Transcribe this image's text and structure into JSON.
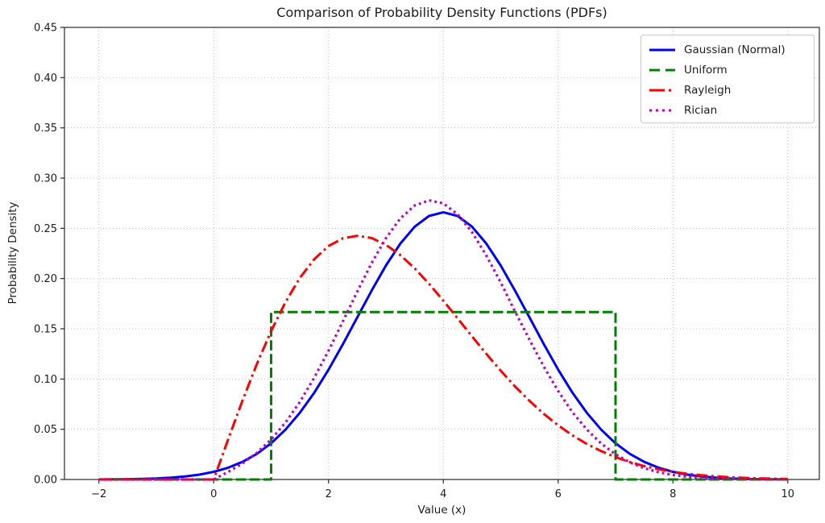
{
  "figure": {
    "background": "#ffffff",
    "text_color": "#1c1c1c",
    "spine_color": "#2a2a2a",
    "grid_color": "#c6c6c6",
    "legend_border_color": "#c9c9c9"
  },
  "chart_data": {
    "type": "line",
    "title": "Comparison of Probability Density Functions (PDFs)",
    "xlabel": "Value (x)",
    "ylabel": "Probability Density",
    "xlim": [
      -2.6,
      10.55
    ],
    "ylim": [
      0,
      0.45
    ],
    "xticks": [
      -2,
      0,
      2,
      4,
      6,
      8,
      10
    ],
    "xtick_labels": [
      "−2",
      "0",
      "2",
      "4",
      "6",
      "8",
      "10"
    ],
    "yticks": [
      0,
      0.05,
      0.1,
      0.15,
      0.2,
      0.25,
      0.3,
      0.35,
      0.4,
      0.45
    ],
    "ytick_labels": [
      "0.00",
      "0.05",
      "0.10",
      "0.15",
      "0.20",
      "0.25",
      "0.30",
      "0.35",
      "0.40",
      "0.45"
    ],
    "grid": "dotted",
    "legend_position": "upper right",
    "series": [
      {
        "name": "gaussian",
        "label": "Gaussian (Normal)",
        "color": "#0000ff",
        "style": "solid",
        "points": [
          [
            -2,
            0.0001
          ],
          [
            -1.75,
            0.0002
          ],
          [
            -1.5,
            0.0003
          ],
          [
            -1.25,
            0.0006
          ],
          [
            -1,
            0.001
          ],
          [
            -0.75,
            0.0018
          ],
          [
            -0.5,
            0.003
          ],
          [
            -0.25,
            0.0048
          ],
          [
            0,
            0.0076
          ],
          [
            0.25,
            0.0117
          ],
          [
            0.5,
            0.0175
          ],
          [
            0.75,
            0.0254
          ],
          [
            1,
            0.036
          ],
          [
            1.25,
            0.0496
          ],
          [
            1.5,
            0.0663
          ],
          [
            1.75,
            0.0863
          ],
          [
            2,
            0.1093
          ],
          [
            2.25,
            0.1347
          ],
          [
            2.5,
            0.1613
          ],
          [
            2.75,
            0.1879
          ],
          [
            3,
            0.213
          ],
          [
            3.25,
            0.2347
          ],
          [
            3.5,
            0.2516
          ],
          [
            3.75,
            0.2623
          ],
          [
            4,
            0.266
          ],
          [
            4.25,
            0.2623
          ],
          [
            4.5,
            0.2516
          ],
          [
            4.75,
            0.2347
          ],
          [
            5,
            0.213
          ],
          [
            5.25,
            0.1879
          ],
          [
            5.5,
            0.1613
          ],
          [
            5.75,
            0.1347
          ],
          [
            6,
            0.1093
          ],
          [
            6.25,
            0.0863
          ],
          [
            6.5,
            0.0663
          ],
          [
            6.75,
            0.0496
          ],
          [
            7,
            0.036
          ],
          [
            7.25,
            0.0254
          ],
          [
            7.5,
            0.0175
          ],
          [
            7.75,
            0.0117
          ],
          [
            8,
            0.0076
          ],
          [
            8.25,
            0.0048
          ],
          [
            8.5,
            0.003
          ],
          [
            8.75,
            0.0018
          ],
          [
            9,
            0.001
          ],
          [
            9.25,
            0.0006
          ],
          [
            9.5,
            0.0003
          ],
          [
            9.75,
            0.0002
          ],
          [
            10,
            0.0001
          ]
        ]
      },
      {
        "name": "uniform",
        "label": "Uniform",
        "color": "#008000",
        "style": "dashed",
        "points": [
          [
            -2,
            0
          ],
          [
            1,
            0
          ],
          [
            1,
            0.1667
          ],
          [
            7,
            0.1667
          ],
          [
            7,
            0
          ],
          [
            10,
            0
          ]
        ]
      },
      {
        "name": "rayleigh",
        "label": "Rayleigh",
        "color": "#ff0000",
        "style": "dashdot",
        "points": [
          [
            -2,
            0
          ],
          [
            0,
            0
          ],
          [
            0.25,
            0.0398
          ],
          [
            0.5,
            0.0784
          ],
          [
            0.75,
            0.1147
          ],
          [
            1,
            0.1477
          ],
          [
            1.25,
            0.1765
          ],
          [
            1.5,
            0.2005
          ],
          [
            1.75,
            0.2192
          ],
          [
            2,
            0.2324
          ],
          [
            2.25,
            0.2401
          ],
          [
            2.5,
            0.2426
          ],
          [
            2.75,
            0.2403
          ],
          [
            3,
            0.2336
          ],
          [
            3.25,
            0.2234
          ],
          [
            3.5,
            0.2102
          ],
          [
            3.75,
            0.1948
          ],
          [
            4,
            0.1779
          ],
          [
            4.25,
            0.1603
          ],
          [
            4.5,
            0.1425
          ],
          [
            4.75,
            0.125
          ],
          [
            5,
            0.1083
          ],
          [
            5.25,
            0.0926
          ],
          [
            5.5,
            0.0783
          ],
          [
            5.75,
            0.0653
          ],
          [
            6,
            0.0539
          ],
          [
            6.25,
            0.0439
          ],
          [
            6.5,
            0.0354
          ],
          [
            6.75,
            0.0282
          ],
          [
            7,
            0.0222
          ],
          [
            7.25,
            0.0173
          ],
          [
            7.5,
            0.0133
          ],
          [
            7.75,
            0.0102
          ],
          [
            8,
            0.0076
          ],
          [
            8.25,
            0.0057
          ],
          [
            8.5,
            0.0042
          ],
          [
            8.75,
            0.0031
          ],
          [
            9,
            0.0022
          ],
          [
            9.25,
            0.0016
          ],
          [
            9.5,
            0.0011
          ],
          [
            9.75,
            0.0008
          ],
          [
            10,
            0.0005
          ]
        ]
      },
      {
        "name": "rician",
        "label": "Rician",
        "color": "#bf00bf",
        "style": "dotted",
        "points": [
          [
            -2,
            0
          ],
          [
            0,
            0
          ],
          [
            0.25,
            0.0075
          ],
          [
            0.5,
            0.016
          ],
          [
            0.75,
            0.0265
          ],
          [
            1,
            0.0398
          ],
          [
            1.25,
            0.0566
          ],
          [
            1.5,
            0.0771
          ],
          [
            1.75,
            0.1012
          ],
          [
            2,
            0.1283
          ],
          [
            2.25,
            0.1574
          ],
          [
            2.5,
            0.187
          ],
          [
            2.75,
            0.2153
          ],
          [
            3,
            0.2401
          ],
          [
            3.25,
            0.2597
          ],
          [
            3.5,
            0.2727
          ],
          [
            3.75,
            0.2779
          ],
          [
            4,
            0.2748
          ],
          [
            4.25,
            0.2639
          ],
          [
            4.5,
            0.2462
          ],
          [
            4.75,
            0.2228
          ],
          [
            5,
            0.1961
          ],
          [
            5.25,
            0.1672
          ],
          [
            5.5,
            0.1392
          ],
          [
            5.75,
            0.1123
          ],
          [
            6,
            0.0881
          ],
          [
            6.25,
            0.0668
          ],
          [
            6.5,
            0.0497
          ],
          [
            6.75,
            0.0358
          ],
          [
            7,
            0.025
          ],
          [
            7.25,
            0.017
          ],
          [
            7.5,
            0.0112
          ],
          [
            7.75,
            0.0072
          ],
          [
            8,
            0.0045
          ],
          [
            8.25,
            0.0027
          ],
          [
            8.5,
            0.0016
          ],
          [
            8.75,
            0.0009
          ],
          [
            9,
            0.0005
          ],
          [
            9.25,
            0.0003
          ],
          [
            9.5,
            0.0002
          ],
          [
            9.75,
            0.0001
          ],
          [
            10,
            0
          ]
        ]
      }
    ]
  }
}
